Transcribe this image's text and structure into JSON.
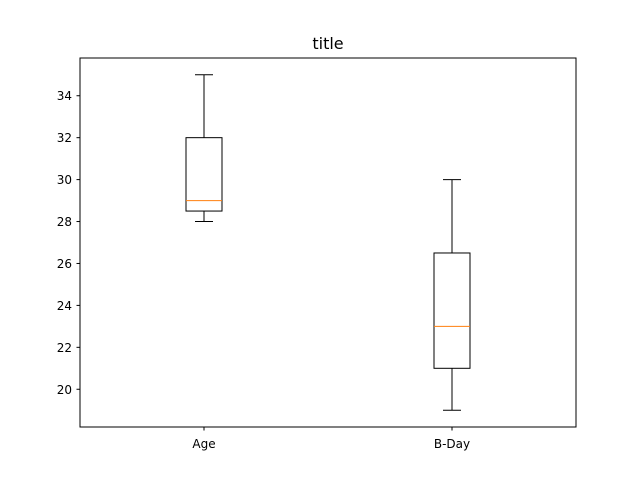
{
  "chart_data": {
    "type": "box",
    "title": "title",
    "xlabel": "",
    "ylabel": "",
    "categories": [
      "Age",
      "B-Day"
    ],
    "boxes": [
      {
        "label": "Age",
        "whisker_low": 28,
        "q1": 28.5,
        "median": 29,
        "q3": 32,
        "whisker_high": 35
      },
      {
        "label": "B-Day",
        "whisker_low": 19,
        "q1": 21,
        "median": 23,
        "q3": 26.5,
        "whisker_high": 30
      }
    ],
    "ylim": [
      18.2,
      35.8
    ],
    "yticks": [
      20,
      22,
      24,
      26,
      28,
      30,
      32,
      34
    ],
    "grid": false,
    "colors": {
      "box": "#000000",
      "median": "#ff7f0e",
      "axes": "#000000"
    }
  }
}
